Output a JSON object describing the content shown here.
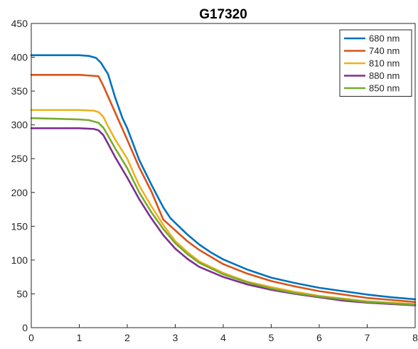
{
  "chart_data": {
    "type": "line",
    "title": "G17320",
    "xlabel": "",
    "ylabel": "",
    "xlim": [
      0,
      8
    ],
    "ylim": [
      0,
      450
    ],
    "x_ticks": [
      "0",
      "1",
      "2",
      "3",
      "4",
      "5",
      "6",
      "7",
      "8"
    ],
    "y_ticks": [
      "0",
      "50",
      "100",
      "150",
      "200",
      "250",
      "300",
      "350",
      "400",
      "450"
    ],
    "grid": false,
    "legend_position": "top-right",
    "series": [
      {
        "name": "680 nm",
        "color": "#0072BD",
        "points": [
          [
            0,
            403
          ],
          [
            0.5,
            403
          ],
          [
            1.0,
            403
          ],
          [
            1.2,
            402
          ],
          [
            1.35,
            399
          ],
          [
            1.45,
            392
          ],
          [
            1.6,
            375
          ],
          [
            1.75,
            340
          ],
          [
            1.9,
            310
          ],
          [
            2.0,
            295
          ],
          [
            2.25,
            248
          ],
          [
            2.5,
            212
          ],
          [
            2.75,
            178
          ],
          [
            2.9,
            162
          ],
          [
            3.0,
            155
          ],
          [
            3.25,
            138
          ],
          [
            3.5,
            123
          ],
          [
            3.75,
            111
          ],
          [
            4.0,
            101
          ],
          [
            4.5,
            86
          ],
          [
            5.0,
            74
          ],
          [
            5.5,
            66
          ],
          [
            6.0,
            59
          ],
          [
            6.5,
            54
          ],
          [
            7.0,
            49
          ],
          [
            7.5,
            45
          ],
          [
            8.0,
            42
          ]
        ]
      },
      {
        "name": "740 nm",
        "color": "#D95319",
        "points": [
          [
            0,
            374
          ],
          [
            0.5,
            374
          ],
          [
            1.0,
            374
          ],
          [
            1.2,
            373
          ],
          [
            1.4,
            372
          ],
          [
            1.5,
            358
          ],
          [
            1.75,
            318
          ],
          [
            2.0,
            278
          ],
          [
            2.25,
            237
          ],
          [
            2.5,
            202
          ],
          [
            2.75,
            160
          ],
          [
            3.0,
            144
          ],
          [
            3.25,
            128
          ],
          [
            3.5,
            115
          ],
          [
            4.0,
            94
          ],
          [
            4.5,
            80
          ],
          [
            5.0,
            69
          ],
          [
            5.5,
            61
          ],
          [
            6.0,
            54
          ],
          [
            6.5,
            49
          ],
          [
            7.0,
            44
          ],
          [
            7.5,
            41
          ],
          [
            8.0,
            38
          ]
        ]
      },
      {
        "name": "810 nm",
        "color": "#EDB120",
        "points": [
          [
            0,
            322
          ],
          [
            0.5,
            322
          ],
          [
            1.0,
            322
          ],
          [
            1.3,
            321
          ],
          [
            1.4,
            319
          ],
          [
            1.5,
            312
          ],
          [
            1.6,
            298
          ],
          [
            1.75,
            278
          ],
          [
            2.0,
            250
          ],
          [
            2.25,
            210
          ],
          [
            2.5,
            180
          ],
          [
            2.75,
            152
          ],
          [
            3.0,
            128
          ],
          [
            3.25,
            112
          ],
          [
            3.5,
            98
          ],
          [
            4.0,
            81
          ],
          [
            4.5,
            68
          ],
          [
            5.0,
            60
          ],
          [
            5.5,
            53
          ],
          [
            6.0,
            47
          ],
          [
            6.5,
            43
          ],
          [
            7.0,
            39
          ],
          [
            7.5,
            37
          ],
          [
            8.0,
            35
          ]
        ]
      },
      {
        "name": "880 nm",
        "color": "#7E2F8E",
        "points": [
          [
            0,
            295
          ],
          [
            0.5,
            295
          ],
          [
            1.0,
            295
          ],
          [
            1.3,
            294
          ],
          [
            1.4,
            292
          ],
          [
            1.5,
            285
          ],
          [
            1.6,
            272
          ],
          [
            1.75,
            252
          ],
          [
            2.0,
            222
          ],
          [
            2.25,
            190
          ],
          [
            2.5,
            162
          ],
          [
            2.75,
            137
          ],
          [
            3.0,
            117
          ],
          [
            3.25,
            102
          ],
          [
            3.5,
            90
          ],
          [
            4.0,
            75
          ],
          [
            4.5,
            64
          ],
          [
            5.0,
            56
          ],
          [
            5.5,
            50
          ],
          [
            6.0,
            45
          ],
          [
            6.5,
            40
          ],
          [
            7.0,
            37
          ],
          [
            7.5,
            35
          ],
          [
            8.0,
            33
          ]
        ]
      },
      {
        "name": "850 nm",
        "color": "#77AC30",
        "points": [
          [
            0,
            310
          ],
          [
            0.5,
            309
          ],
          [
            1.0,
            308
          ],
          [
            1.2,
            307
          ],
          [
            1.4,
            303
          ],
          [
            1.5,
            296
          ],
          [
            1.6,
            284
          ],
          [
            1.75,
            265
          ],
          [
            2.0,
            236
          ],
          [
            2.25,
            200
          ],
          [
            2.5,
            171
          ],
          [
            2.75,
            146
          ],
          [
            3.0,
            125
          ],
          [
            3.25,
            109
          ],
          [
            3.5,
            96
          ],
          [
            4.0,
            79
          ],
          [
            4.5,
            67
          ],
          [
            5.0,
            58
          ],
          [
            5.5,
            51
          ],
          [
            6.0,
            46
          ],
          [
            6.5,
            42
          ],
          [
            7.0,
            38
          ],
          [
            7.5,
            36
          ],
          [
            8.0,
            34
          ]
        ]
      }
    ]
  }
}
